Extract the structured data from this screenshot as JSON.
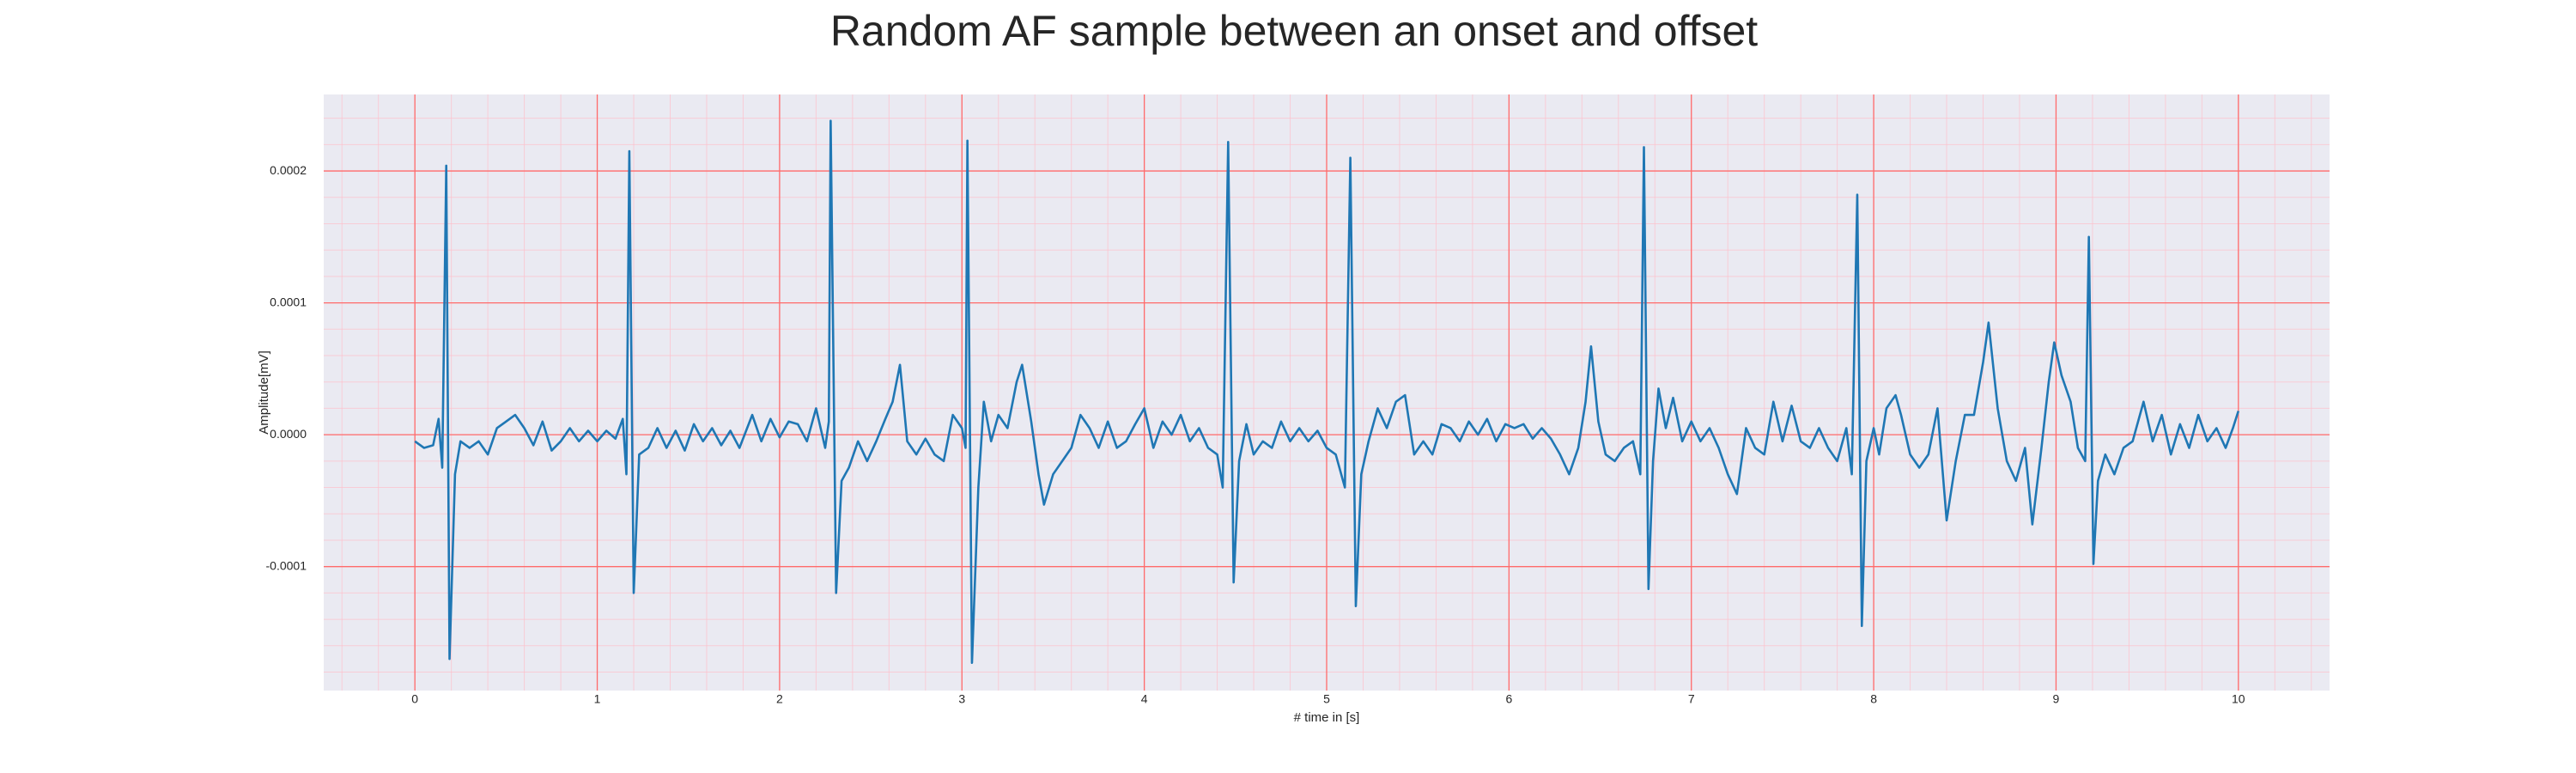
{
  "chart_data": {
    "type": "line",
    "title": "Random AF sample between an onset and offset",
    "xlabel": "# time in [s]",
    "ylabel": "Amplitude[mV]",
    "color": "#1f77b4",
    "grid": true,
    "minor_grid": true,
    "xlim": [
      -0.5,
      10.5
    ],
    "ylim": [
      -0.000194,
      0.000258
    ],
    "xticks": [
      0,
      1,
      2,
      3,
      4,
      5,
      6,
      7,
      8,
      9,
      10
    ],
    "yticks": [
      -0.0001,
      {
        "value": 0,
        "label": "0.0000"
      },
      0.0001,
      0.0002
    ],
    "x": [
      0.0,
      0.05,
      0.1,
      0.13,
      0.15,
      0.172,
      0.19,
      0.22,
      0.25,
      0.3,
      0.35,
      0.4,
      0.45,
      0.5,
      0.55,
      0.6,
      0.65,
      0.7,
      0.75,
      0.8,
      0.85,
      0.9,
      0.95,
      1.0,
      1.05,
      1.1,
      1.14,
      1.16,
      1.176,
      1.2,
      1.23,
      1.28,
      1.33,
      1.38,
      1.43,
      1.48,
      1.53,
      1.58,
      1.63,
      1.68,
      1.73,
      1.78,
      1.85,
      1.9,
      1.95,
      2.0,
      2.05,
      2.1,
      2.15,
      2.2,
      2.25,
      2.27,
      2.28,
      2.31,
      2.34,
      2.38,
      2.43,
      2.48,
      2.53,
      2.58,
      2.62,
      2.66,
      2.7,
      2.75,
      2.8,
      2.85,
      2.9,
      2.95,
      3.0,
      3.02,
      3.03,
      3.055,
      3.09,
      3.12,
      3.16,
      3.2,
      3.25,
      3.3,
      3.33,
      3.38,
      3.42,
      3.45,
      3.5,
      3.55,
      3.6,
      3.65,
      3.7,
      3.75,
      3.8,
      3.85,
      3.9,
      3.95,
      4.0,
      4.05,
      4.1,
      4.15,
      4.2,
      4.25,
      4.3,
      4.35,
      4.4,
      4.43,
      4.46,
      4.49,
      4.52,
      4.56,
      4.6,
      4.65,
      4.7,
      4.75,
      4.8,
      4.85,
      4.9,
      4.95,
      5.0,
      5.05,
      5.1,
      5.13,
      5.16,
      5.19,
      5.23,
      5.28,
      5.33,
      5.38,
      5.43,
      5.48,
      5.53,
      5.58,
      5.63,
      5.68,
      5.73,
      5.78,
      5.83,
      5.88,
      5.93,
      5.98,
      6.03,
      6.08,
      6.13,
      6.18,
      6.23,
      6.28,
      6.33,
      6.38,
      6.42,
      6.45,
      6.49,
      6.53,
      6.58,
      6.63,
      6.68,
      6.72,
      6.74,
      6.765,
      6.79,
      6.82,
      6.86,
      6.9,
      6.95,
      7.0,
      7.05,
      7.1,
      7.15,
      7.2,
      7.25,
      7.3,
      7.35,
      7.4,
      7.45,
      7.5,
      7.55,
      7.6,
      7.65,
      7.7,
      7.75,
      7.8,
      7.85,
      7.88,
      7.91,
      7.935,
      7.96,
      8.0,
      8.03,
      8.07,
      8.12,
      8.15,
      8.2,
      8.25,
      8.3,
      8.35,
      8.4,
      8.45,
      8.5,
      8.55,
      8.6,
      8.63,
      8.68,
      8.73,
      8.78,
      8.83,
      8.87,
      8.92,
      8.96,
      8.99,
      9.03,
      9.08,
      9.12,
      9.16,
      9.18,
      9.205,
      9.23,
      9.27,
      9.32,
      9.37,
      9.42,
      9.48,
      9.53,
      9.58,
      9.63,
      9.68,
      9.73,
      9.78,
      9.83,
      9.88,
      9.93,
      9.97,
      10.0
    ],
    "values": [
      -5e-06,
      -1e-05,
      -8e-06,
      1.2e-05,
      -2.5e-05,
      0.000204,
      -0.00017,
      -3e-05,
      -5e-06,
      -1e-05,
      -5e-06,
      -1.5e-05,
      5e-06,
      1e-05,
      1.5e-05,
      5e-06,
      -8e-06,
      1e-05,
      -1.2e-05,
      -5e-06,
      5e-06,
      -5e-06,
      3e-06,
      -5e-06,
      3e-06,
      -3e-06,
      1.2e-05,
      -3e-05,
      0.000215,
      -0.00012,
      -1.5e-05,
      -1e-05,
      5e-06,
      -1e-05,
      3e-06,
      -1.2e-05,
      8e-06,
      -5e-06,
      5e-06,
      -8e-06,
      3e-06,
      -1e-05,
      1.5e-05,
      -5e-06,
      1.2e-05,
      -2e-06,
      1e-05,
      8e-06,
      -5e-06,
      2e-05,
      -1e-05,
      1e-05,
      0.000238,
      -0.00012,
      -3.5e-05,
      -2.5e-05,
      -5e-06,
      -2e-05,
      -5e-06,
      1.2e-05,
      2.5e-05,
      5.3e-05,
      -5e-06,
      -1.5e-05,
      -3e-06,
      -1.5e-05,
      -2e-05,
      1.5e-05,
      5e-06,
      -1e-05,
      0.000223,
      -0.000173,
      -4e-05,
      2.5e-05,
      -5e-06,
      1.5e-05,
      5e-06,
      4e-05,
      5.3e-05,
      1e-05,
      -3e-05,
      -5.3e-05,
      -3e-05,
      -2e-05,
      -1e-05,
      1.5e-05,
      5e-06,
      -1e-05,
      1e-05,
      -1e-05,
      -5e-06,
      8e-06,
      2e-05,
      -1e-05,
      1e-05,
      0,
      1.5e-05,
      -5e-06,
      5e-06,
      -1e-05,
      -1.5e-05,
      -4e-05,
      0.000222,
      -0.000112,
      -2e-05,
      8e-06,
      -1.5e-05,
      -5e-06,
      -1e-05,
      1e-05,
      -5e-06,
      5e-06,
      -5e-06,
      3e-06,
      -1e-05,
      -1.5e-05,
      -4e-05,
      0.00021,
      -0.00013,
      -3e-05,
      -5e-06,
      2e-05,
      5e-06,
      2.5e-05,
      3e-05,
      -1.5e-05,
      -5e-06,
      -1.5e-05,
      8e-06,
      5e-06,
      -5e-06,
      1e-05,
      0,
      1.2e-05,
      -5e-06,
      8e-06,
      5e-06,
      8e-06,
      -3e-06,
      5e-06,
      -3e-06,
      -1.5e-05,
      -3e-05,
      -1e-05,
      2.5e-05,
      6.7e-05,
      1e-05,
      -1.5e-05,
      -2e-05,
      -1e-05,
      -5e-06,
      -3e-05,
      0.000218,
      -0.000117,
      -2e-05,
      3.5e-05,
      5e-06,
      2.8e-05,
      -5e-06,
      1e-05,
      -5e-06,
      5e-06,
      -1e-05,
      -3e-05,
      -4.5e-05,
      5e-06,
      -1e-05,
      -1.5e-05,
      2.5e-05,
      -5e-06,
      2.2e-05,
      -5e-06,
      -1e-05,
      5e-06,
      -1e-05,
      -2e-05,
      5e-06,
      -3e-05,
      0.000182,
      -0.000145,
      -2e-05,
      5e-06,
      -1.5e-05,
      2e-05,
      3e-05,
      1.5e-05,
      -1.5e-05,
      -2.5e-05,
      -1.5e-05,
      2e-05,
      -6.5e-05,
      -2e-05,
      1.5e-05,
      1.5e-05,
      5.5e-05,
      8.5e-05,
      2e-05,
      -2e-05,
      -3.5e-05,
      -1e-05,
      -6.8e-05,
      -1e-05,
      4e-05,
      7e-05,
      4.5e-05,
      2.5e-05,
      -1e-05,
      -2e-05,
      0.00015,
      -9.8e-05,
      -3.5e-05,
      -1.5e-05,
      -3e-05,
      -1e-05,
      -5e-06,
      2.5e-05,
      -5e-06,
      1.5e-05,
      -1.5e-05,
      8e-06,
      -1e-05,
      1.5e-05,
      -5e-06,
      5e-06,
      -1e-05,
      5e-06,
      1.8e-05
    ]
  }
}
